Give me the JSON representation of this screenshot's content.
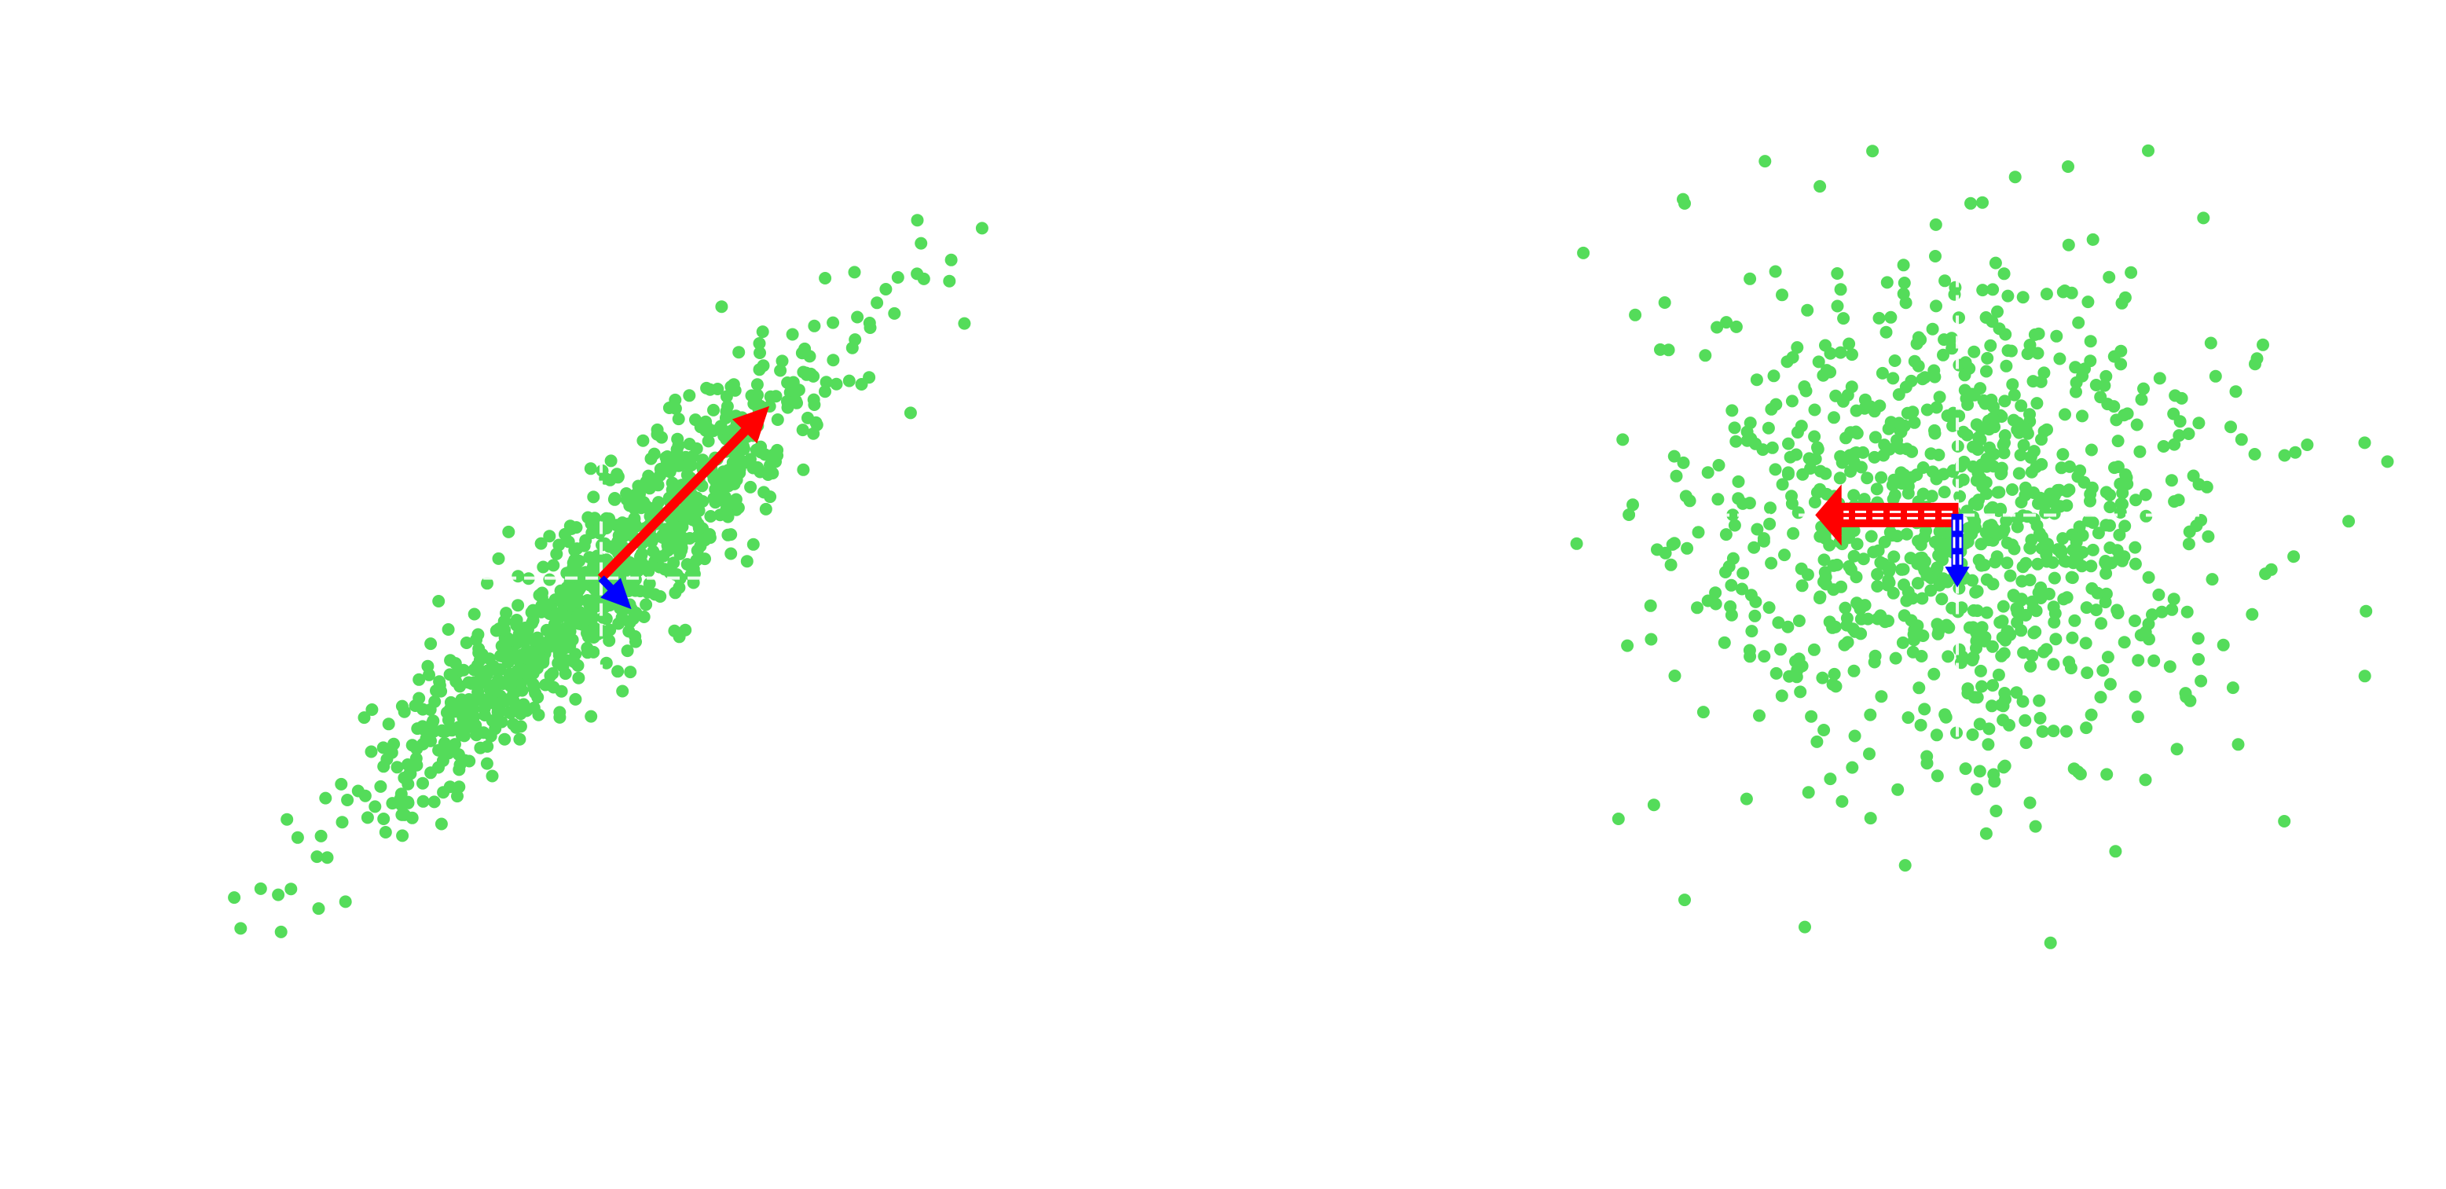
{
  "colors": {
    "background": "#ffffff",
    "points": "#54dc5a",
    "first_component": "#ff0000",
    "second_component": "#0000ff",
    "axes_line": "#ffffff",
    "outline": "#ffffff"
  },
  "chart_data": [
    {
      "type": "scatter",
      "xlim": [
        -6.6,
        8.0
      ],
      "ylim": [
        -6.1,
        6.8
      ],
      "axes_visible": false,
      "grid": false,
      "points_generation": {
        "count": 1000,
        "seed": 7,
        "mean": [
          0.0,
          0.0
        ],
        "principal_direction": [
          0.707,
          0.707
        ],
        "std_along_principal": 2.25,
        "std_across_principal": 0.45
      },
      "extreme_points": [
        {
          "x": 4.7,
          "y": 5.2
        },
        {
          "x": 5.4,
          "y": 3.7
        },
        {
          "x": 4.1,
          "y": 4.0
        },
        {
          "x": 4.6,
          "y": 2.4
        },
        {
          "x": -4.8,
          "y": -4.6
        },
        {
          "x": -4.2,
          "y": -4.8
        },
        {
          "x": -3.8,
          "y": -4.7
        }
      ],
      "center_axes": {
        "x": 0.0,
        "y": 0.0,
        "style": "dashed"
      },
      "vectors": [
        {
          "role": "first-component",
          "x0": 0.0,
          "y0": 0.0,
          "dx": 2.5,
          "dy": 2.5,
          "style": "solid"
        },
        {
          "role": "second-component",
          "x0": 0.0,
          "y0": 0.0,
          "dx": 0.45,
          "dy": -0.45,
          "style": "solid"
        }
      ]
    },
    {
      "type": "scatter",
      "xlim": [
        -3.0,
        2.8
      ],
      "ylim": [
        -3.1,
        2.6
      ],
      "axes_visible": false,
      "grid": false,
      "points_generation": {
        "count": 1000,
        "seed": 21,
        "mean": [
          0.0,
          0.0
        ],
        "std_x": 0.8,
        "std_y": 0.8
      },
      "extreme_points": [
        {
          "x": -1.65,
          "y": 2.0
        },
        {
          "x": 0.35,
          "y": 2.17
        },
        {
          "x": 1.9,
          "y": -0.35
        },
        {
          "x": -2.05,
          "y": -1.95
        },
        {
          "x": -1.65,
          "y": -2.47
        },
        {
          "x": -0.9,
          "y": -1.78
        }
      ],
      "center_axes": {
        "x": 0.0,
        "y": 0.0,
        "style": "dashed"
      },
      "vectors": [
        {
          "role": "first-component",
          "x0": 0.0,
          "y0": 0.0,
          "dx": -0.85,
          "dy": 0.0,
          "style": "hollow-outlined-dashed"
        },
        {
          "role": "second-component",
          "x0": 0.0,
          "y0": 0.0,
          "dx": 0.0,
          "dy": -0.45,
          "style": "hollow-outlined-dashed"
        }
      ]
    }
  ]
}
